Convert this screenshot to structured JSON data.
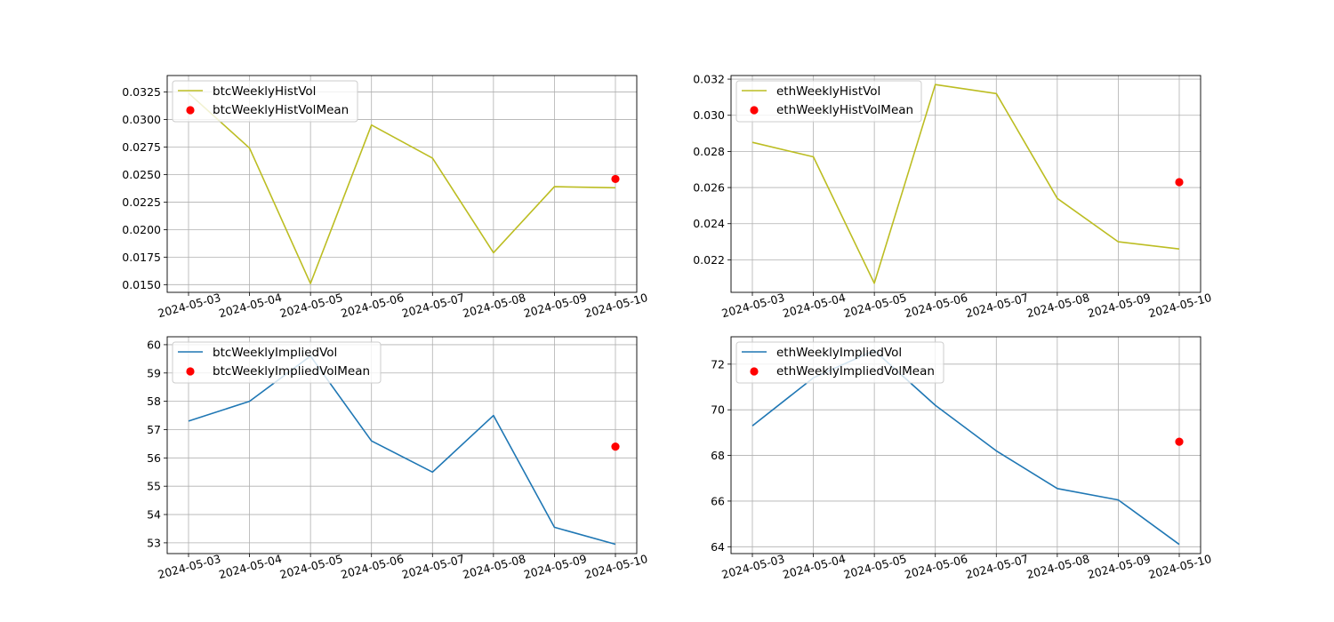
{
  "chart_data": [
    {
      "type": "line",
      "x": [
        "2024-05-03",
        "2024-05-04",
        "2024-05-05",
        "2024-05-06",
        "2024-05-07",
        "2024-05-08",
        "2024-05-09",
        "2024-05-10"
      ],
      "series": [
        {
          "name": "btcWeeklyHistVol",
          "kind": "line",
          "color": "#bcbd22",
          "values": [
            0.0324,
            0.0274,
            0.0151,
            0.0295,
            0.0265,
            0.0179,
            0.0239,
            0.0238
          ]
        },
        {
          "name": "btcWeeklyHistVolMean",
          "kind": "scatter",
          "color": "#ff0000",
          "points": [
            {
              "x": "2024-05-10",
              "y": 0.0246
            }
          ]
        }
      ],
      "ylim": [
        0.0143,
        0.034
      ],
      "yticks": [
        0.015,
        0.0175,
        0.02,
        0.0225,
        0.025,
        0.0275,
        0.03,
        0.0325
      ],
      "ytick_labels": [
        "0.0150",
        "0.0175",
        "0.0200",
        "0.0225",
        "0.0250",
        "0.0275",
        "0.0300",
        "0.0325"
      ],
      "grid": true,
      "legend_position": "upper-left"
    },
    {
      "type": "line",
      "x": [
        "2024-05-03",
        "2024-05-04",
        "2024-05-05",
        "2024-05-06",
        "2024-05-07",
        "2024-05-08",
        "2024-05-09",
        "2024-05-10"
      ],
      "series": [
        {
          "name": "ethWeeklyHistVol",
          "kind": "line",
          "color": "#bcbd22",
          "values": [
            0.0285,
            0.0277,
            0.0207,
            0.0317,
            0.0312,
            0.0254,
            0.023,
            0.0226
          ]
        },
        {
          "name": "ethWeeklyHistVolMean",
          "kind": "scatter",
          "color": "#ff0000",
          "points": [
            {
              "x": "2024-05-10",
              "y": 0.0263
            }
          ]
        }
      ],
      "ylim": [
        0.0202,
        0.0322
      ],
      "yticks": [
        0.022,
        0.024,
        0.026,
        0.028,
        0.03,
        0.032
      ],
      "ytick_labels": [
        "0.022",
        "0.024",
        "0.026",
        "0.028",
        "0.030",
        "0.032"
      ],
      "grid": true,
      "legend_position": "upper-left"
    },
    {
      "type": "line",
      "x": [
        "2024-05-03",
        "2024-05-04",
        "2024-05-05",
        "2024-05-06",
        "2024-05-07",
        "2024-05-08",
        "2024-05-09",
        "2024-05-10"
      ],
      "series": [
        {
          "name": "btcWeeklyImpliedVol",
          "kind": "line",
          "color": "#1f77b4",
          "values": [
            57.3,
            58.0,
            59.6,
            56.6,
            55.5,
            57.5,
            53.55,
            52.95
          ]
        },
        {
          "name": "btcWeeklyImpliedVolMean",
          "kind": "scatter",
          "color": "#ff0000",
          "points": [
            {
              "x": "2024-05-10",
              "y": 56.4
            }
          ]
        }
      ],
      "ylim": [
        52.62,
        60.28
      ],
      "yticks": [
        53,
        54,
        55,
        56,
        57,
        58,
        59,
        60
      ],
      "ytick_labels": [
        "53",
        "54",
        "55",
        "56",
        "57",
        "58",
        "59",
        "60"
      ],
      "grid": true,
      "legend_position": "upper-left"
    },
    {
      "type": "line",
      "x": [
        "2024-05-03",
        "2024-05-04",
        "2024-05-05",
        "2024-05-06",
        "2024-05-07",
        "2024-05-08",
        "2024-05-09",
        "2024-05-10"
      ],
      "series": [
        {
          "name": "ethWeeklyImpliedVol",
          "kind": "line",
          "color": "#1f77b4",
          "values": [
            69.3,
            71.4,
            72.6,
            70.2,
            68.2,
            66.55,
            66.05,
            64.1
          ]
        },
        {
          "name": "ethWeeklyImpliedVolMean",
          "kind": "scatter",
          "color": "#ff0000",
          "points": [
            {
              "x": "2024-05-10",
              "y": 68.6
            }
          ]
        }
      ],
      "ylim": [
        63.7,
        73.2
      ],
      "yticks": [
        64,
        66,
        68,
        70,
        72
      ],
      "ytick_labels": [
        "64",
        "66",
        "68",
        "70",
        "72"
      ],
      "grid": true,
      "legend_position": "upper-left"
    }
  ]
}
